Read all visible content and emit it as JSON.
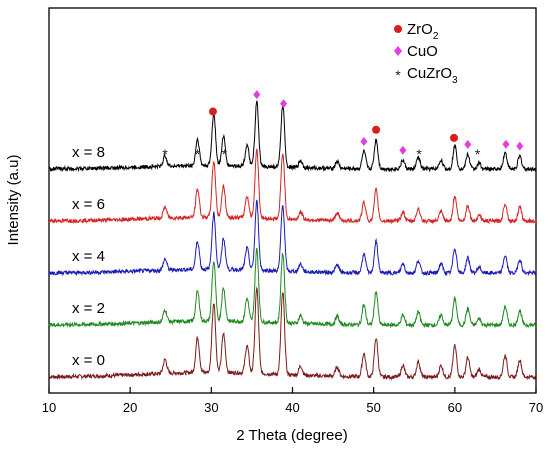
{
  "chart_data": {
    "type": "line",
    "xlabel": "2 Theta (degree)",
    "ylabel": "Intensity (a.u)",
    "xlim": [
      10,
      70
    ],
    "xticks": [
      10,
      20,
      30,
      40,
      50,
      60,
      70
    ],
    "y_tick_labels": "none",
    "grid": false,
    "legend_position": "top-right",
    "legend": [
      {
        "name": "ZrO",
        "sub": "2",
        "marker": "circle",
        "color": "#d62020"
      },
      {
        "name": "CuO",
        "sub": "",
        "marker": "diamond",
        "color": "#e33ce0"
      },
      {
        "name": "CuZrO",
        "sub": "3",
        "marker": "asterisk",
        "color": "#222222"
      }
    ],
    "peaks_common": [
      {
        "x": 24.3,
        "h": 0.18
      },
      {
        "x": 28.3,
        "h": 0.45
      },
      {
        "x": 30.3,
        "h": 0.9
      },
      {
        "x": 31.5,
        "h": 0.5
      },
      {
        "x": 34.4,
        "h": 0.35
      },
      {
        "x": 35.6,
        "h": 1.1
      },
      {
        "x": 38.8,
        "h": 1.05
      },
      {
        "x": 41.0,
        "h": 0.12
      },
      {
        "x": 45.5,
        "h": 0.12
      },
      {
        "x": 48.8,
        "h": 0.3
      },
      {
        "x": 50.3,
        "h": 0.5
      },
      {
        "x": 53.6,
        "h": 0.15
      },
      {
        "x": 55.5,
        "h": 0.2
      },
      {
        "x": 58.3,
        "h": 0.15
      },
      {
        "x": 60.0,
        "h": 0.4
      },
      {
        "x": 61.6,
        "h": 0.25
      },
      {
        "x": 63.0,
        "h": 0.1
      },
      {
        "x": 66.2,
        "h": 0.28
      },
      {
        "x": 68.0,
        "h": 0.22
      }
    ],
    "series": [
      {
        "name": "x = 0",
        "color": "#7a1c1c",
        "offset": 0,
        "scale": 1.0
      },
      {
        "name": "x = 2",
        "color": "#1e8a1e",
        "offset": 1,
        "scale": 0.85
      },
      {
        "name": "x = 4",
        "color": "#1c1cb4",
        "offset": 2,
        "scale": 0.8
      },
      {
        "name": "x = 6",
        "color": "#d42424",
        "offset": 3,
        "scale": 0.8
      },
      {
        "name": "x = 8",
        "color": "#000000",
        "offset": 4,
        "scale": 0.75
      }
    ],
    "markers_x8": [
      {
        "type": "circle",
        "x": 30.2
      },
      {
        "type": "diamond",
        "x": 35.6
      },
      {
        "type": "diamond",
        "x": 38.9
      },
      {
        "type": "diamond",
        "x": 48.8
      },
      {
        "type": "circle",
        "x": 50.3
      },
      {
        "type": "diamond",
        "x": 53.6
      },
      {
        "type": "circle",
        "x": 59.9
      },
      {
        "type": "diamond",
        "x": 61.6
      },
      {
        "type": "diamond",
        "x": 66.3
      },
      {
        "type": "diamond",
        "x": 68.0
      },
      {
        "type": "asterisk",
        "x": 24.3
      },
      {
        "type": "asterisk",
        "x": 28.3
      },
      {
        "type": "asterisk",
        "x": 31.6
      },
      {
        "type": "asterisk",
        "x": 55.6
      },
      {
        "type": "asterisk",
        "x": 62.8
      }
    ]
  }
}
